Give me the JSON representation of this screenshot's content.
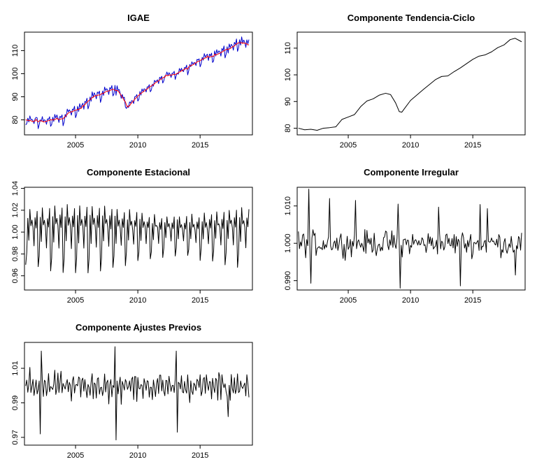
{
  "chart_data": [
    {
      "type": "line",
      "title": "IGAE",
      "xlabel": "",
      "ylabel": "",
      "xlim": [
        2000.9,
        2019.2
      ],
      "ylim": [
        73.5,
        118
      ],
      "xticks": [
        2005,
        2010,
        2015
      ],
      "xtick_labels": [
        "2005",
        "2010",
        "2015"
      ],
      "yticks": [
        80,
        90,
        100,
        110
      ],
      "ytick_labels": [
        "80",
        "90",
        "100",
        "110"
      ],
      "grid": false,
      "series": [
        {
          "color": "#0000cc",
          "kind": "original"
        },
        {
          "color": "#ff0000",
          "kind": "adjusted"
        }
      ],
      "x_start": 2001.0,
      "x_end": 2018.92,
      "n_points": 216
    },
    {
      "type": "line",
      "title": "Componente Tendencia-Ciclo",
      "xlabel": "",
      "ylabel": "",
      "xlim": [
        2000.9,
        2019.2
      ],
      "ylim": [
        77.5,
        116
      ],
      "xticks": [
        2005,
        2010,
        2015
      ],
      "xtick_labels": [
        "2005",
        "2010",
        "2015"
      ],
      "yticks": [
        80,
        90,
        100,
        110
      ],
      "ytick_labels": [
        "80",
        "90",
        "100",
        "110"
      ],
      "grid": false,
      "series": [
        {
          "color": "#000000"
        }
      ],
      "x": [
        2001.0,
        2001.5,
        2002.0,
        2002.5,
        2003.0,
        2003.5,
        2004.0,
        2004.5,
        2005.0,
        2005.5,
        2006.0,
        2006.5,
        2007.0,
        2007.5,
        2008.0,
        2008.4,
        2008.8,
        2009.1,
        2009.3,
        2009.6,
        2010.0,
        2010.5,
        2011.0,
        2011.5,
        2012.0,
        2012.5,
        2013.0,
        2013.5,
        2014.0,
        2014.5,
        2015.0,
        2015.5,
        2016.0,
        2016.5,
        2017.0,
        2017.5,
        2018.0,
        2018.4,
        2018.92
      ],
      "y": [
        80.0,
        79.4,
        79.6,
        79.2,
        80.0,
        80.2,
        80.5,
        83.3,
        84.2,
        85.1,
        88.1,
        90.2,
        91.0,
        92.4,
        93.1,
        92.6,
        89.5,
        86.2,
        86.0,
        87.9,
        90.4,
        92.4,
        94.4,
        96.3,
        98.2,
        99.4,
        99.6,
        101.2,
        102.6,
        104.2,
        105.8,
        107.0,
        107.5,
        108.6,
        110.2,
        111.2,
        113.2,
        113.7,
        112.4
      ]
    },
    {
      "type": "line",
      "title": "Componente Estacional",
      "xlabel": "",
      "ylabel": "",
      "xlim": [
        2000.9,
        2019.2
      ],
      "ylim": [
        0.947,
        1.041
      ],
      "xticks": [
        2005,
        2010,
        2015
      ],
      "xtick_labels": [
        "2005",
        "2010",
        "2015"
      ],
      "yticks": [
        0.96,
        0.98,
        1.0,
        1.02,
        1.04
      ],
      "ytick_labels": [
        "0.96",
        "0.98",
        "1.00",
        "1.02",
        "1.04"
      ],
      "grid": false,
      "series": [
        {
          "color": "#000000"
        }
      ],
      "x_start": 2001.0,
      "x_end": 2018.92,
      "n_points": 216
    },
    {
      "type": "line",
      "title": "Componente Irregular",
      "xlabel": "",
      "ylabel": "",
      "xlim": [
        2000.9,
        2019.2
      ],
      "ylim": [
        0.9875,
        1.015
      ],
      "xticks": [
        2005,
        2010,
        2015
      ],
      "xtick_labels": [
        "2005",
        "2010",
        "2015"
      ],
      "yticks": [
        0.99,
        1.0,
        1.01
      ],
      "ytick_labels": [
        "0.990",
        "1.000",
        "1.010"
      ],
      "grid": false,
      "series": [
        {
          "color": "#000000"
        }
      ],
      "x_start": 2001.0,
      "x_end": 2018.92,
      "n_points": 216
    },
    {
      "type": "line",
      "title": "Componente Ajustes Previos",
      "xlabel": "",
      "ylabel": "",
      "xlim": [
        2000.9,
        2019.2
      ],
      "ylim": [
        0.9655,
        1.025
      ],
      "xticks": [
        2005,
        2010,
        2015
      ],
      "xtick_labels": [
        "2005",
        "2010",
        "2015"
      ],
      "yticks": [
        0.97,
        0.99,
        1.01
      ],
      "ytick_labels": [
        "0.97",
        "0.99",
        "1.01"
      ],
      "grid": false,
      "series": [
        {
          "color": "#000000"
        }
      ],
      "x_start": 2001.0,
      "x_end": 2018.92,
      "n_points": 216
    }
  ]
}
